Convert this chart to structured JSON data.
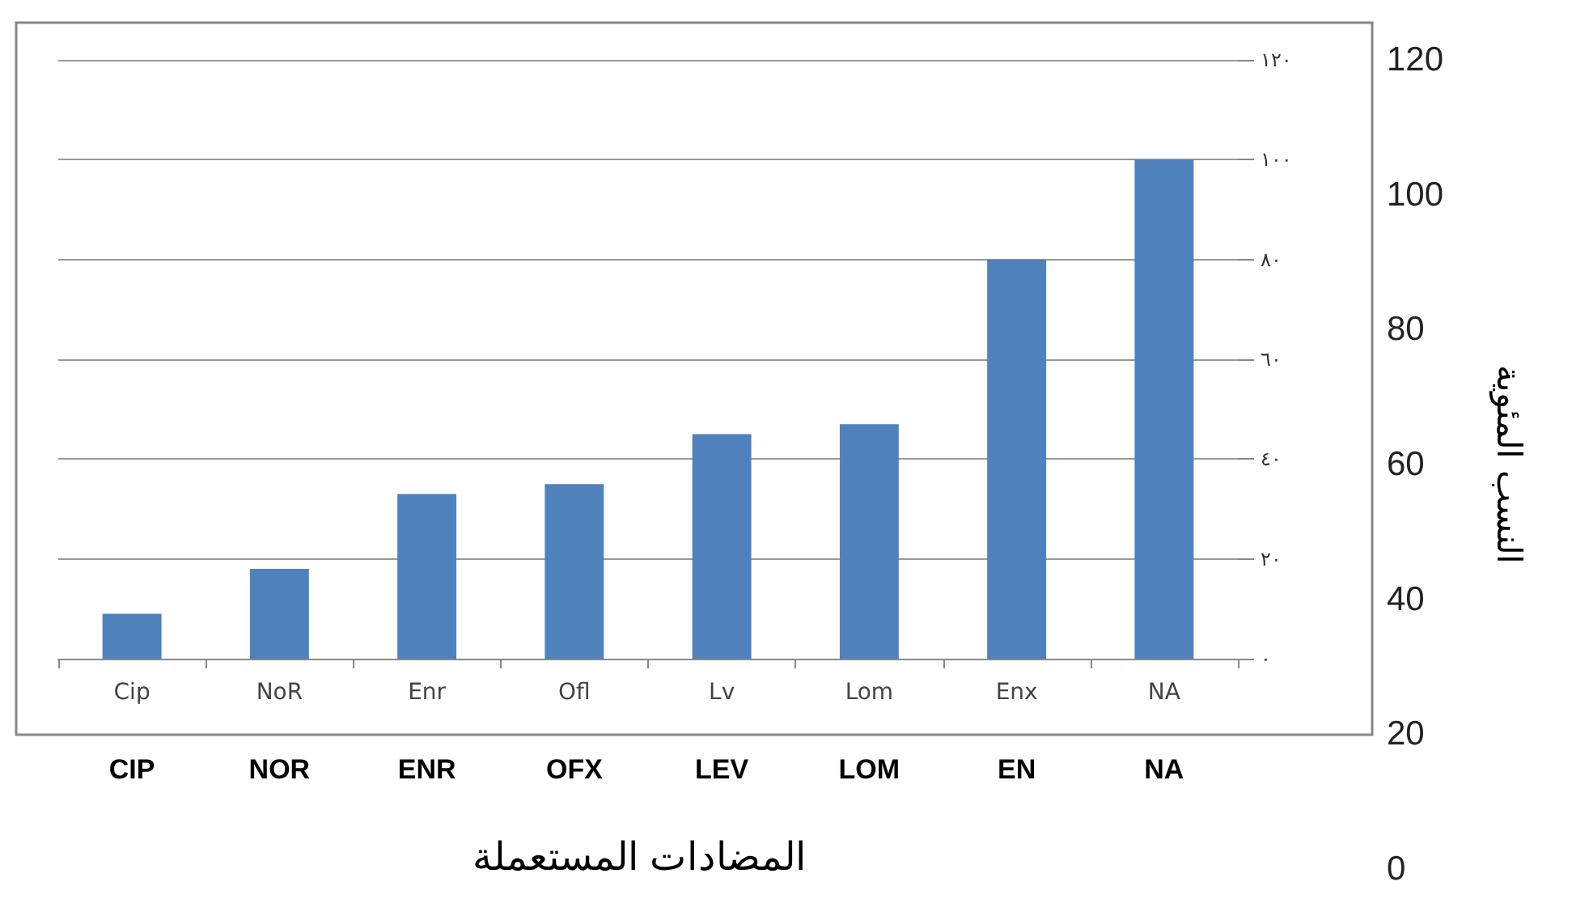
{
  "chart_data": {
    "type": "bar",
    "categories": [
      "Cip",
      "NoR",
      "Enr",
      "Ofl",
      "Lv",
      "Lom",
      "Enx",
      "NA"
    ],
    "values": [
      9,
      18,
      33,
      35,
      45,
      47,
      80,
      100
    ],
    "color": "#4f81bd",
    "ylim": [
      0,
      120
    ],
    "yticks": [
      {
        "value": 0,
        "label": "٠"
      },
      {
        "value": 20,
        "label": "٢٠"
      },
      {
        "value": 40,
        "label": "٤٠"
      },
      {
        "value": 60,
        "label": "٦٠"
      },
      {
        "value": 80,
        "label": "٨٠"
      },
      {
        "value": 100,
        "label": "١٠٠"
      },
      {
        "value": 120,
        "label": "١٢٠"
      }
    ],
    "y2lim": [
      0,
      120
    ],
    "y2ticks": [
      0,
      20,
      40,
      60,
      80,
      100,
      120
    ],
    "y2label": "النسب المئوية",
    "xlabel": "المضادات المستعملة",
    "annotations": [
      "CIP",
      "NOR",
      "ENR",
      "OFX",
      "LEV",
      "LOM",
      "EN",
      "NA"
    ],
    "grid": "y"
  }
}
